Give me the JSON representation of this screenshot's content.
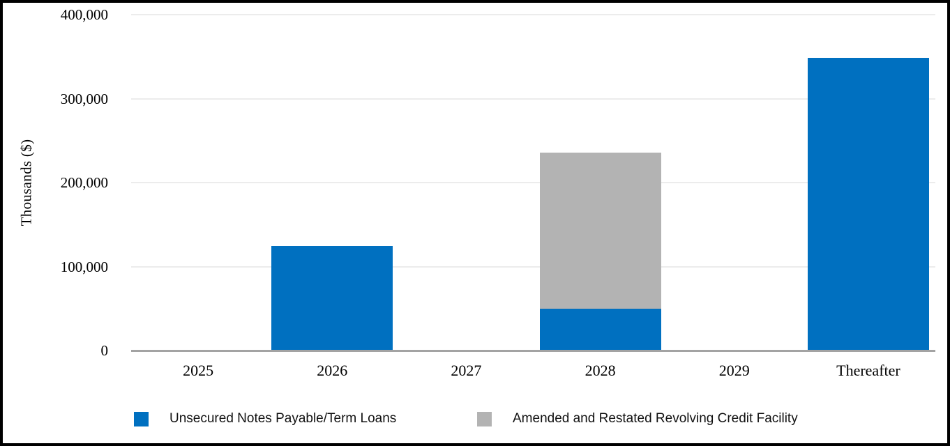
{
  "window": {
    "background": "#FFFFFF",
    "border_color": "#000000"
  },
  "chart_data": {
    "type": "bar",
    "stacked": true,
    "title": "",
    "xlabel": "",
    "ylabel": "Thousands ($)",
    "categories": [
      "2025",
      "2026",
      "2027",
      "2028",
      "2029",
      "Thereafter"
    ],
    "series": [
      {
        "name": "Unsecured Notes Payable/Term Loans",
        "color": "#0070C0",
        "values": [
          0,
          124000,
          0,
          49000,
          0,
          348000
        ]
      },
      {
        "name": "Amended and Restated Revolving Credit Facility",
        "color": "#B3B3B3",
        "values": [
          0,
          0,
          0,
          186000,
          0,
          0
        ]
      }
    ],
    "ylim": [
      0,
      400000
    ],
    "yticks": [
      0,
      100000,
      200000,
      300000,
      400000
    ],
    "ytick_labels": [
      "0",
      "100,000",
      "200,000",
      "300,000",
      "400,000"
    ],
    "grid": "horizontal",
    "gridline_color": "#ECECEC",
    "axis_line_color": "#A3A3A3",
    "legend_position": "bottom"
  },
  "legend": {
    "items": [
      {
        "label": "Unsecured Notes Payable/Term Loans",
        "color": "#0070C0"
      },
      {
        "label": "Amended and Restated Revolving Credit Facility",
        "color": "#B3B3B3"
      }
    ]
  }
}
